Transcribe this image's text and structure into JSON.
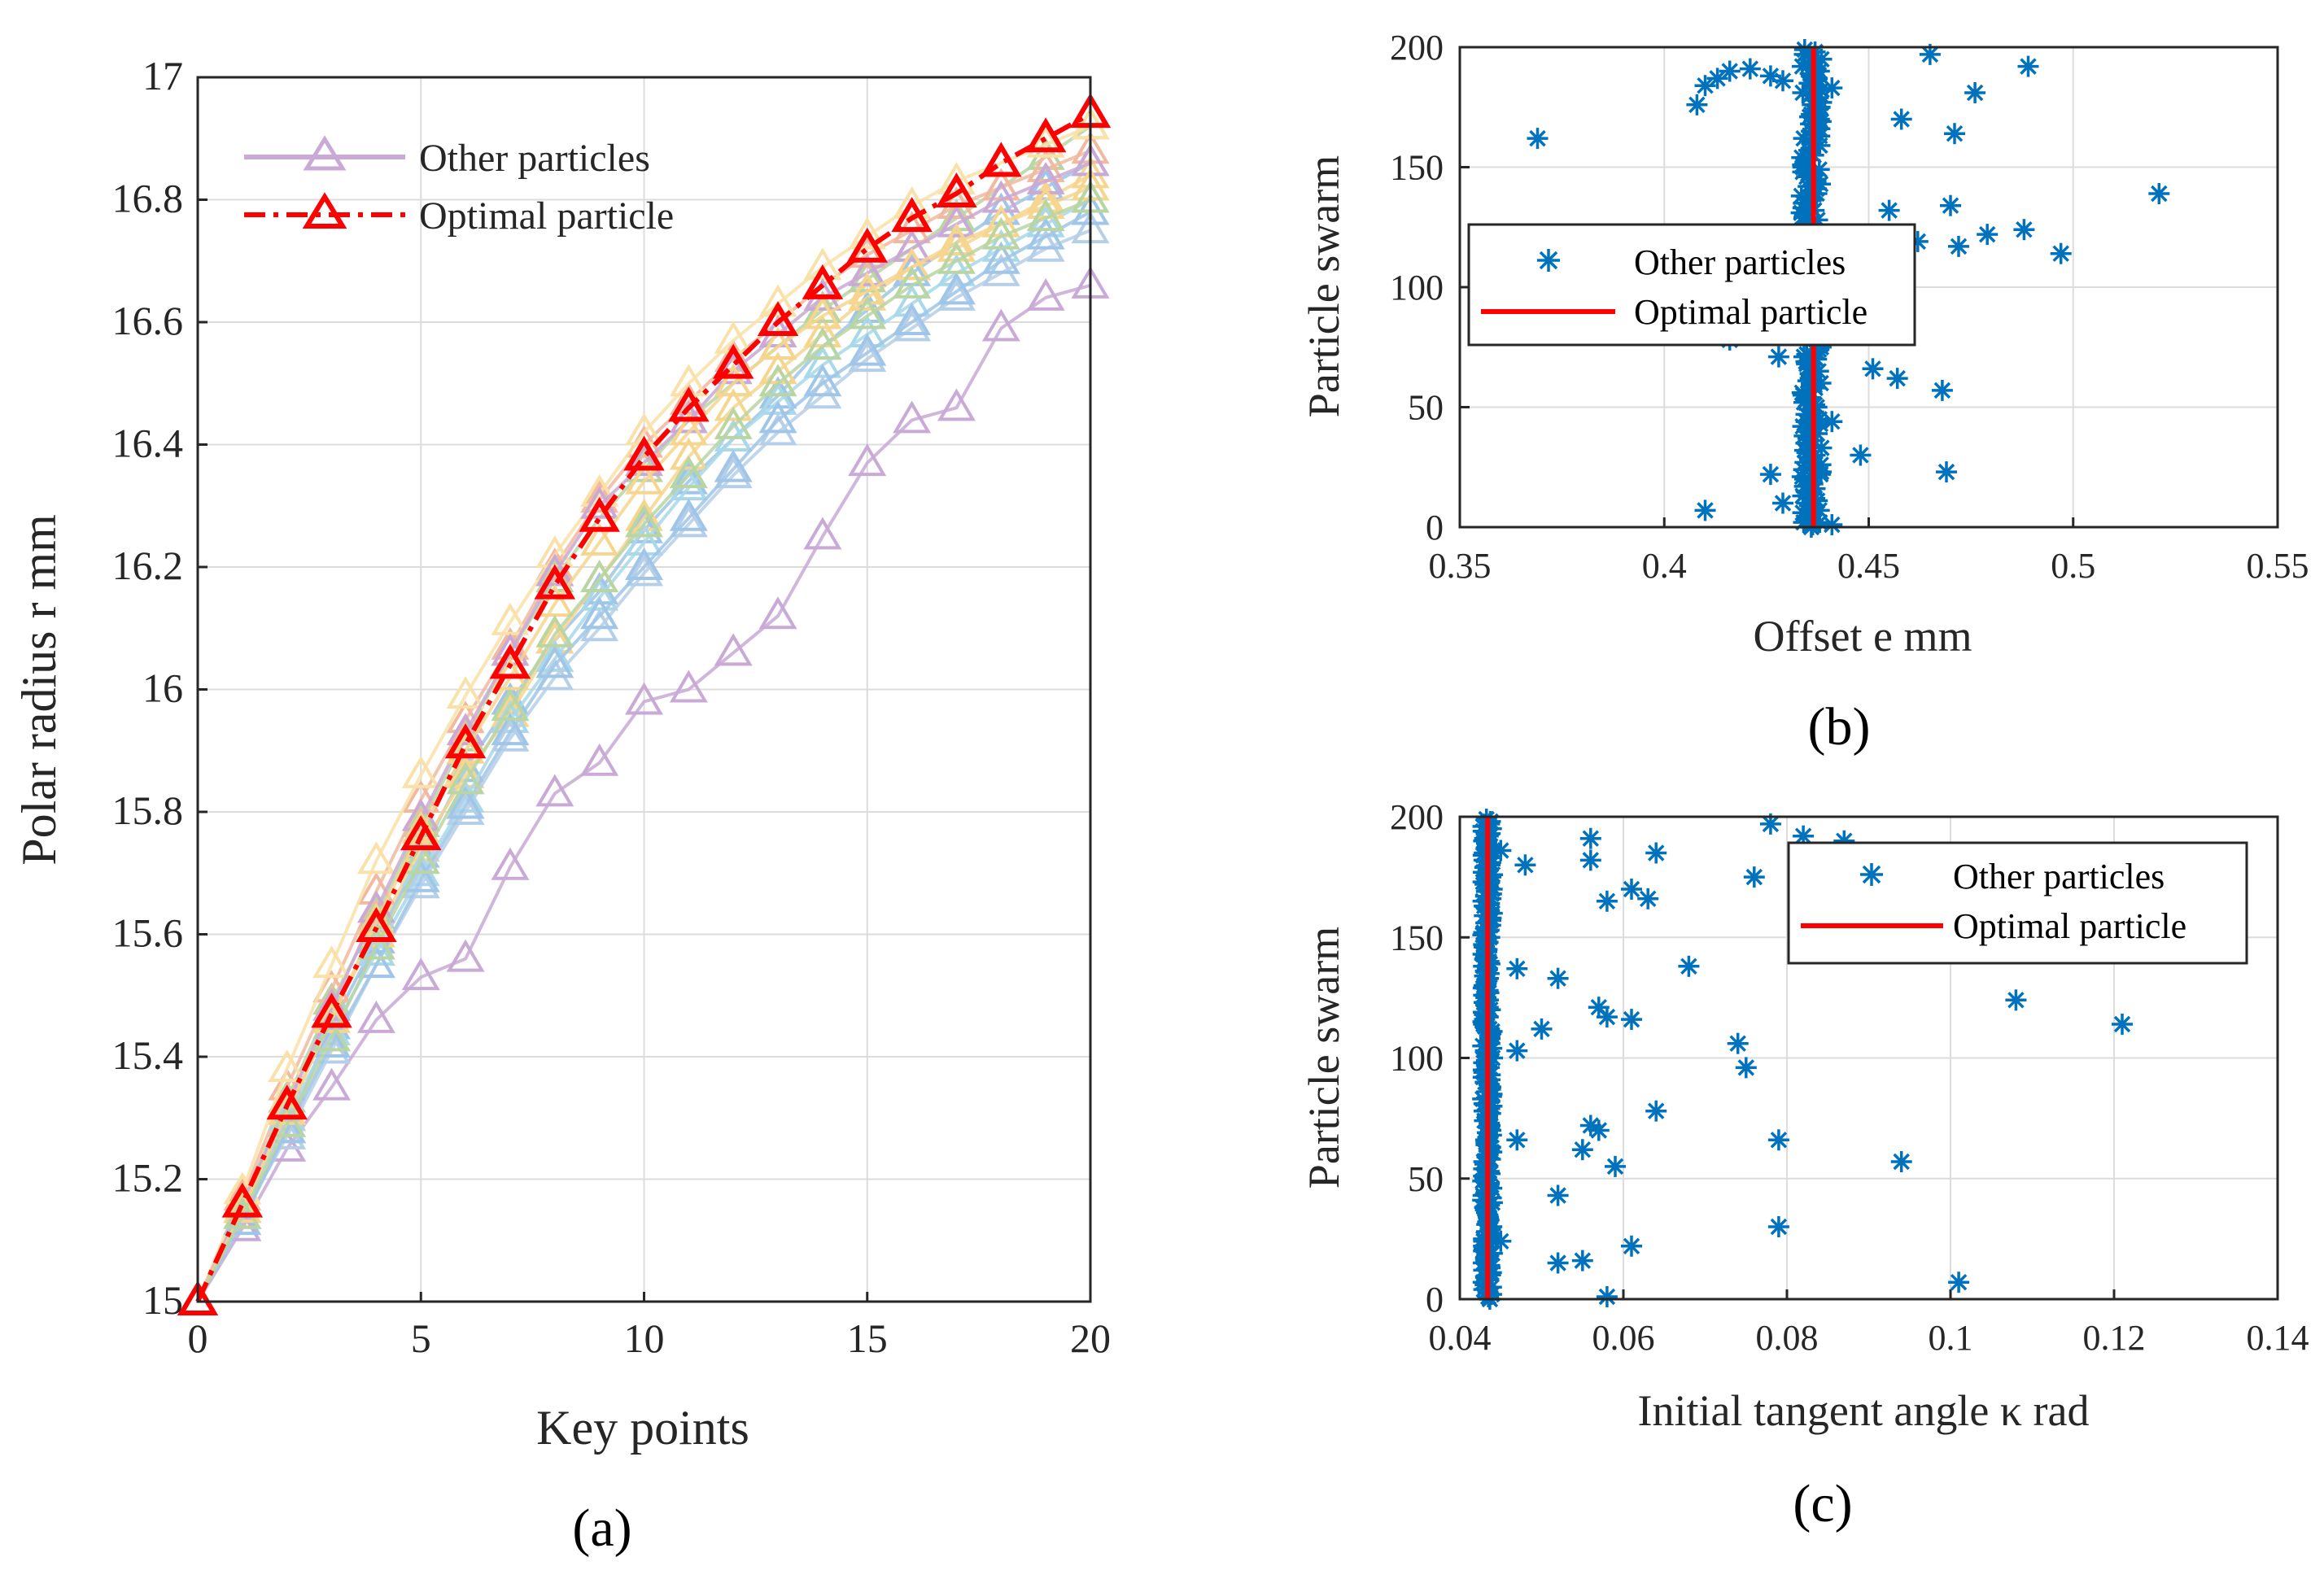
{
  "colors": {
    "optimal": "#ff0000",
    "scatter": "#0072bd",
    "other_palette": [
      "#c9a9d6",
      "#9fc5e8",
      "#f6d58e",
      "#b9d5a2",
      "#f2b9a0",
      "#a8d8ea",
      "#f9e1a8",
      "#b6cfe8"
    ]
  },
  "chart_data": [
    {
      "id": "a",
      "type": "line",
      "caption": "(a)",
      "xlabel": "Key points",
      "ylabel": "Polar radius  r  mm",
      "xlim": [
        0,
        20
      ],
      "ylim": [
        15,
        17
      ],
      "xticks": [
        "0",
        "5",
        "10",
        "15",
        "20"
      ],
      "yticks": [
        "15",
        "15.2",
        "15.4",
        "15.6",
        "15.8",
        "16",
        "16.2",
        "16.4",
        "16.6",
        "16.8",
        "17"
      ],
      "legend": [
        "Other particles",
        "Optimal particle"
      ],
      "legend_position": "top-left",
      "x": [
        0,
        1,
        2,
        3,
        4,
        5,
        6,
        7,
        8,
        9,
        10,
        11,
        12,
        13,
        14,
        15,
        16,
        17,
        18,
        19,
        20
      ],
      "series": [
        {
          "name": "Optimal particle",
          "values": [
            15.0,
            15.16,
            15.32,
            15.47,
            15.61,
            15.76,
            15.91,
            16.04,
            16.17,
            16.28,
            16.38,
            16.46,
            16.53,
            16.6,
            16.66,
            16.72,
            16.77,
            16.81,
            16.86,
            16.9,
            16.94
          ]
        },
        {
          "name": "Other particles",
          "values": [
            15.0,
            15.12,
            15.25,
            15.35,
            15.46,
            15.53,
            15.56,
            15.71,
            15.83,
            15.88,
            15.98,
            16.0,
            16.06,
            16.12,
            16.25,
            16.37,
            16.44,
            16.46,
            16.59,
            16.64,
            16.66
          ]
        },
        {
          "name": "Other particles",
          "values": [
            15.0,
            15.14,
            15.28,
            15.45,
            15.59,
            15.73,
            15.87,
            15.98,
            16.08,
            16.16,
            16.26,
            16.34,
            16.41,
            16.48,
            16.56,
            16.62,
            16.68,
            16.73,
            16.78,
            16.82,
            16.86
          ]
        },
        {
          "name": "Other particles",
          "values": [
            15.0,
            15.15,
            15.3,
            15.47,
            15.6,
            15.74,
            15.86,
            15.96,
            16.08,
            16.18,
            16.28,
            16.38,
            16.46,
            16.52,
            16.58,
            16.64,
            16.69,
            16.72,
            16.76,
            16.8,
            16.84
          ]
        },
        {
          "name": "Other particles",
          "values": [
            15.0,
            15.16,
            15.33,
            15.49,
            15.63,
            15.78,
            15.92,
            16.06,
            16.18,
            16.28,
            16.36,
            16.44,
            16.5,
            16.56,
            16.62,
            16.67,
            16.72,
            16.77,
            16.82,
            16.87,
            16.92
          ]
        },
        {
          "name": "Other particles",
          "values": [
            15.0,
            15.17,
            15.35,
            15.51,
            15.67,
            15.82,
            15.95,
            16.07,
            16.2,
            16.31,
            16.4,
            16.47,
            16.54,
            16.6,
            16.66,
            16.71,
            16.75,
            16.79,
            16.82,
            16.85,
            16.88
          ]
        },
        {
          "name": "Other particles",
          "values": [
            15.0,
            15.15,
            15.3,
            15.44,
            15.57,
            15.7,
            15.82,
            15.95,
            16.05,
            16.15,
            16.24,
            16.33,
            16.41,
            16.47,
            16.53,
            16.58,
            16.63,
            16.68,
            16.72,
            16.76,
            16.8
          ]
        },
        {
          "name": "Other particles",
          "values": [
            15.0,
            15.18,
            15.38,
            15.55,
            15.72,
            15.86,
            15.99,
            16.11,
            16.22,
            16.32,
            16.42,
            16.5,
            16.57,
            16.63,
            16.69,
            16.74,
            16.79,
            16.83,
            16.86,
            16.89,
            16.92
          ]
        },
        {
          "name": "Other particles",
          "values": [
            15.0,
            15.14,
            15.27,
            15.41,
            15.55,
            15.68,
            15.8,
            15.92,
            16.02,
            16.1,
            16.19,
            16.27,
            16.35,
            16.42,
            16.48,
            16.54,
            16.59,
            16.64,
            16.68,
            16.72,
            16.75
          ]
        },
        {
          "name": "Other particles",
          "values": [
            15.0,
            15.16,
            15.32,
            15.48,
            15.64,
            15.79,
            15.93,
            16.06,
            16.19,
            16.3,
            16.37,
            16.44,
            16.52,
            16.58,
            16.64,
            16.68,
            16.72,
            16.76,
            16.8,
            16.83,
            16.86
          ]
        },
        {
          "name": "Other particles",
          "values": [
            15.0,
            15.13,
            15.28,
            15.42,
            15.55,
            15.69,
            15.81,
            15.93,
            16.04,
            16.12,
            16.2,
            16.28,
            16.36,
            16.44,
            16.5,
            16.55,
            16.6,
            16.65,
            16.7,
            16.74,
            16.78
          ]
        },
        {
          "name": "Other particles",
          "values": [
            15.0,
            15.15,
            15.31,
            15.46,
            15.62,
            15.77,
            15.9,
            16.02,
            16.14,
            16.24,
            16.34,
            16.42,
            16.5,
            16.56,
            16.61,
            16.65,
            16.69,
            16.73,
            16.76,
            16.79,
            16.82
          ]
        },
        {
          "name": "Other particles",
          "values": [
            15.0,
            15.14,
            15.29,
            15.43,
            15.58,
            15.72,
            15.85,
            15.97,
            16.09,
            16.18,
            16.27,
            16.35,
            16.43,
            16.5,
            16.56,
            16.61,
            16.66,
            16.7,
            16.74,
            16.77,
            16.8
          ]
        }
      ]
    },
    {
      "id": "b",
      "type": "scatter",
      "caption": "(b)",
      "xlabel": "Offset  e  mm",
      "ylabel": "Particle swarm",
      "xlim": [
        0.35,
        0.55
      ],
      "ylim": [
        0,
        200
      ],
      "xticks": [
        "0.35",
        "0.4",
        "0.45",
        "0.5",
        "0.55"
      ],
      "yticks": [
        "0",
        "50",
        "100",
        "150",
        "200"
      ],
      "legend": [
        "Other particles",
        "Optimal particle"
      ],
      "legend_position": "center-left",
      "optimal_x": 0.4365,
      "cluster": {
        "center": 0.436,
        "spread": 0.0025,
        "count": 200
      },
      "outliers": [
        [
          0.369,
          162
        ],
        [
          0.408,
          176
        ],
        [
          0.41,
          184
        ],
        [
          0.413,
          187
        ],
        [
          0.416,
          190
        ],
        [
          0.421,
          191
        ],
        [
          0.426,
          188
        ],
        [
          0.429,
          186
        ],
        [
          0.441,
          183
        ],
        [
          0.465,
          197
        ],
        [
          0.476,
          181
        ],
        [
          0.489,
          192
        ],
        [
          0.458,
          170
        ],
        [
          0.471,
          164
        ],
        [
          0.521,
          139
        ],
        [
          0.47,
          134
        ],
        [
          0.455,
          132
        ],
        [
          0.462,
          119
        ],
        [
          0.472,
          117
        ],
        [
          0.479,
          122
        ],
        [
          0.488,
          124
        ],
        [
          0.497,
          114
        ],
        [
          0.416,
          78
        ],
        [
          0.428,
          71
        ],
        [
          0.451,
          66
        ],
        [
          0.457,
          62
        ],
        [
          0.468,
          57
        ],
        [
          0.441,
          44
        ],
        [
          0.448,
          30
        ],
        [
          0.426,
          22
        ],
        [
          0.469,
          23
        ],
        [
          0.41,
          7
        ],
        [
          0.429,
          10
        ],
        [
          0.438,
          2
        ],
        [
          0.441,
          1
        ]
      ]
    },
    {
      "id": "c",
      "type": "scatter",
      "caption": "(c)",
      "xlabel": "Initial tangent angle  κ  rad",
      "ylabel": "Particle swarm",
      "xlim": [
        0.04,
        0.14
      ],
      "ylim": [
        0,
        200
      ],
      "xticks": [
        "0.04",
        "0.06",
        "0.08",
        "0.1",
        "0.12",
        "0.14"
      ],
      "yticks": [
        "0",
        "50",
        "100",
        "150",
        "200"
      ],
      "legend": [
        "Other particles",
        "Optimal particle"
      ],
      "legend_position": "top-right",
      "optimal_x": 0.0434,
      "cluster": {
        "center": 0.0434,
        "spread": 0.0006,
        "count": 200
      },
      "outliers": [
        [
          0.045,
          186
        ],
        [
          0.048,
          180
        ],
        [
          0.056,
          191
        ],
        [
          0.056,
          182
        ],
        [
          0.061,
          170
        ],
        [
          0.063,
          166
        ],
        [
          0.064,
          185
        ],
        [
          0.058,
          165
        ],
        [
          0.078,
          197
        ],
        [
          0.082,
          192
        ],
        [
          0.076,
          175
        ],
        [
          0.087,
          190
        ],
        [
          0.068,
          138
        ],
        [
          0.052,
          133
        ],
        [
          0.047,
          137
        ],
        [
          0.108,
          124
        ],
        [
          0.121,
          114
        ],
        [
          0.057,
          121
        ],
        [
          0.058,
          117
        ],
        [
          0.061,
          116
        ],
        [
          0.05,
          112
        ],
        [
          0.074,
          106
        ],
        [
          0.075,
          96
        ],
        [
          0.047,
          103
        ],
        [
          0.064,
          78
        ],
        [
          0.056,
          72
        ],
        [
          0.057,
          70
        ],
        [
          0.055,
          62
        ],
        [
          0.059,
          55
        ],
        [
          0.047,
          66
        ],
        [
          0.079,
          66
        ],
        [
          0.094,
          57
        ],
        [
          0.052,
          43
        ],
        [
          0.045,
          24
        ],
        [
          0.079,
          30
        ],
        [
          0.061,
          22
        ],
        [
          0.052,
          15
        ],
        [
          0.055,
          16
        ],
        [
          0.101,
          7
        ],
        [
          0.058,
          1
        ]
      ]
    }
  ]
}
